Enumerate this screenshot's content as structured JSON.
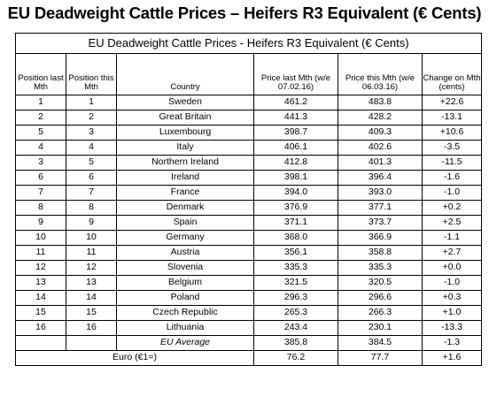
{
  "page_title": "EU Deadweight Cattle Prices – Heifers R3 Equivalent (€ Cents)",
  "table": {
    "caption": "EU Deadweight Cattle Prices - Heifers R3 Equivalent (€ Cents)",
    "headers": {
      "pos_last": "Position last Mth",
      "pos_this": "Position this Mth",
      "country": "Country",
      "price_last": "Price last Mth (w/e 07.02.16)",
      "price_this": "Price this Mth (w/e 06.03.16)",
      "change": "Change on Mth (cents)"
    },
    "rows": [
      [
        "1",
        "1",
        "Sweden",
        "461.2",
        "483.8",
        "+22.6"
      ],
      [
        "2",
        "2",
        "Great Britain",
        "441.3",
        "428.2",
        "-13.1"
      ],
      [
        "5",
        "3",
        "Luxembourg",
        "398.7",
        "409.3",
        "+10.6"
      ],
      [
        "4",
        "4",
        "Italy",
        "406.1",
        "402.6",
        "-3.5"
      ],
      [
        "3",
        "5",
        "Northern Ireland",
        "412.8",
        "401.3",
        "-11.5"
      ],
      [
        "6",
        "6",
        "Ireland",
        "398.1",
        "396.4",
        "-1.6"
      ],
      [
        "7",
        "7",
        "France",
        "394.0",
        "393.0",
        "-1.0"
      ],
      [
        "8",
        "8",
        "Denmark",
        "376.9",
        "377.1",
        "+0.2"
      ],
      [
        "9",
        "9",
        "Spain",
        "371.1",
        "373.7",
        "+2.5"
      ],
      [
        "10",
        "10",
        "Germany",
        "368.0",
        "366.9",
        "-1.1"
      ],
      [
        "11",
        "11",
        "Austria",
        "356.1",
        "358.8",
        "+2.7"
      ],
      [
        "12",
        "12",
        "Slovenia",
        "335.3",
        "335.3",
        "+0.0"
      ],
      [
        "13",
        "13",
        "Belgium",
        "321.5",
        "320.5",
        "-1.0"
      ],
      [
        "14",
        "14",
        "Poland",
        "296.3",
        "296.6",
        "+0.3"
      ],
      [
        "15",
        "15",
        "Czech Republic",
        "265.3",
        "266.3",
        "+1.0"
      ],
      [
        "16",
        "16",
        "Lithuania",
        "243.4",
        "230.1",
        "-13.3"
      ]
    ],
    "eu_average": {
      "label": "EU Average",
      "price_last": "385.8",
      "price_this": "384.5",
      "change": "-1.3"
    },
    "euro": {
      "label": "Euro (€1=)",
      "price_last": "76.2",
      "price_this": "77.7",
      "change": "+1.6"
    }
  }
}
